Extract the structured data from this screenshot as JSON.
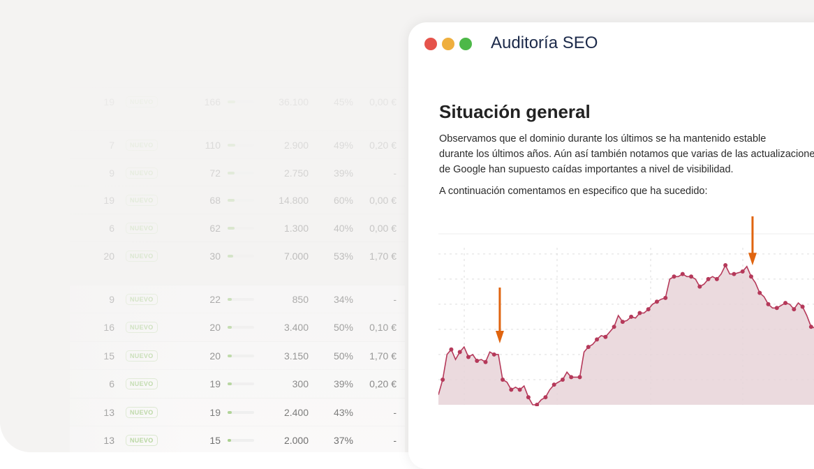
{
  "table": {
    "badge_label": "NUEVO",
    "rows": [
      {
        "pos": "19",
        "value": "166",
        "bar": 0.3,
        "volume": "36.100",
        "pct": "45%",
        "cpc": "0,00 €",
        "opacity": 0.35
      },
      {
        "pos": "7",
        "value": "110",
        "bar": 0.3,
        "volume": "2.900",
        "pct": "49%",
        "cpc": "0,20 €",
        "opacity": 0.45
      },
      {
        "pos": "9",
        "value": "72",
        "bar": 0.25,
        "volume": "2.750",
        "pct": "39%",
        "cpc": "-",
        "opacity": 0.5
      },
      {
        "pos": "19",
        "value": "68",
        "bar": 0.25,
        "volume": "14.800",
        "pct": "60%",
        "cpc": "0,00 €",
        "opacity": 0.55
      },
      {
        "pos": "6",
        "value": "62",
        "bar": 0.25,
        "volume": "1.300",
        "pct": "40%",
        "cpc": "0,00 €",
        "opacity": 0.6
      },
      {
        "pos": "20",
        "value": "30",
        "bar": 0.2,
        "volume": "7.000",
        "pct": "53%",
        "cpc": "1,70 €",
        "opacity": 0.65
      },
      {
        "pos": "9",
        "value": "22",
        "bar": 0.15,
        "volume": "850",
        "pct": "34%",
        "cpc": "-",
        "opacity": 0.75
      },
      {
        "pos": "16",
        "value": "20",
        "bar": 0.15,
        "volume": "3.400",
        "pct": "50%",
        "cpc": "0,10 €",
        "opacity": 0.8
      },
      {
        "pos": "15",
        "value": "20",
        "bar": 0.15,
        "volume": "3.150",
        "pct": "50%",
        "cpc": "1,70 €",
        "opacity": 0.85
      },
      {
        "pos": "6",
        "value": "19",
        "bar": 0.15,
        "volume": "300",
        "pct": "39%",
        "cpc": "0,20 €",
        "opacity": 0.9
      },
      {
        "pos": "13",
        "value": "19",
        "bar": 0.15,
        "volume": "2.400",
        "pct": "43%",
        "cpc": "-",
        "opacity": 0.95
      },
      {
        "pos": "13",
        "value": "15",
        "bar": 0.12,
        "volume": "2.000",
        "pct": "37%",
        "cpc": "-",
        "opacity": 1
      }
    ]
  },
  "window": {
    "title": "Auditoría SEO",
    "traffic_lights": {
      "close": "#e5534b",
      "minimize": "#efaf3e",
      "zoom": "#4db848"
    },
    "heading": "Situación general",
    "paragraph_lines": [
      "Observamos que el dominio durante los últimos se ha mantenido estable",
      "durante los últimos años. Aún así también notamos que varias de las actualizaciones",
      "de Google han supuesto caídas importantes a nivel de visibilidad."
    ],
    "paragraph2": "A continuación comentamos en especifico que ha sucedido:"
  },
  "chart_data": {
    "type": "area",
    "title": "",
    "xlabel": "",
    "ylabel": "",
    "grid": true,
    "ylim": [
      0,
      6.8
    ],
    "line_color": "#b5395a",
    "fill_color": "#e8d3d8",
    "arrow_color": "#e0640f",
    "values": [
      0.4,
      1.0,
      2.0,
      2.2,
      1.8,
      2.1,
      2.3,
      1.9,
      2.0,
      1.75,
      1.8,
      1.7,
      2.1,
      2.0,
      2.0,
      1.0,
      0.9,
      0.6,
      0.7,
      0.6,
      0.75,
      0.3,
      0,
      0,
      0.2,
      0.3,
      0.6,
      0.8,
      0.9,
      1.0,
      1.3,
      1.1,
      1.1,
      1.1,
      2.1,
      2.3,
      2.4,
      2.6,
      2.75,
      2.7,
      2.9,
      3.1,
      3.55,
      3.3,
      3.35,
      3.5,
      3.45,
      3.65,
      3.65,
      3.8,
      4.0,
      4.1,
      4.2,
      4.25,
      5.0,
      5.1,
      5.1,
      5.2,
      5.1,
      5.1,
      5.0,
      4.7,
      4.8,
      5.0,
      5.1,
      5.0,
      5.2,
      5.55,
      5.2,
      5.2,
      5.25,
      5.3,
      5.5,
      5.1,
      4.85,
      4.45,
      4.3,
      4.0,
      3.85,
      3.85,
      3.95,
      4.05,
      4.0,
      3.8,
      4.05,
      3.9,
      3.55,
      3.1,
      3.05
    ],
    "annotations": [
      {
        "type": "arrow-down",
        "index": 14
      },
      {
        "type": "arrow-down",
        "index": 73
      }
    ]
  }
}
